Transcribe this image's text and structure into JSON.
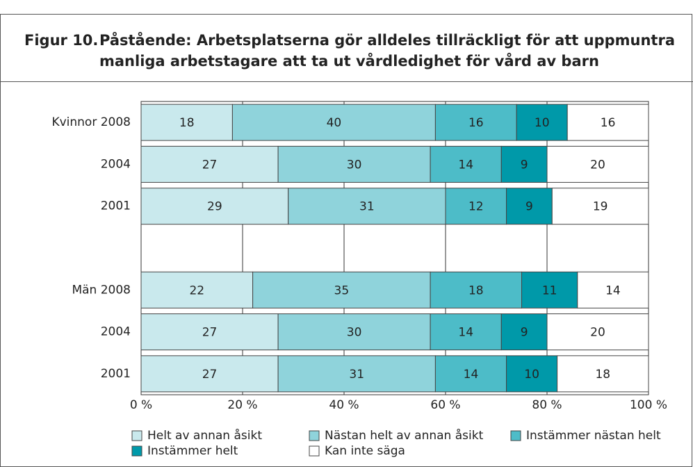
{
  "chart_data": {
    "type": "stacked-barh",
    "figure_label": "Figur 10.",
    "title": [
      "Påstående: Arbetsplatserna gör alldeles tillräckligt för att uppmuntra",
      "manliga arbetstagare att ta ut vårdledighet för vård av barn"
    ],
    "categories": [
      "Kvinnor 2008",
      "2004",
      "2001",
      null,
      "Män 2008",
      "2004",
      "2001"
    ],
    "series": [
      {
        "name": "Helt av annan åsikt",
        "color": "#c9e9ed",
        "values": [
          18,
          27,
          29,
          null,
          22,
          27,
          27
        ]
      },
      {
        "name": "Nästan helt av annan åsikt",
        "color": "#8fd3db",
        "values": [
          40,
          30,
          31,
          null,
          35,
          30,
          31
        ]
      },
      {
        "name": "Instämmer nästan helt",
        "color": "#4dbcc8",
        "values": [
          16,
          14,
          12,
          null,
          18,
          14,
          14
        ]
      },
      {
        "name": "Instämmer helt",
        "color": "#0099a9",
        "values": [
          10,
          9,
          9,
          null,
          11,
          9,
          10
        ]
      },
      {
        "name": "Kan inte säga",
        "color": "#ffffff",
        "values": [
          16,
          20,
          19,
          null,
          14,
          20,
          18
        ]
      }
    ],
    "xlim": [
      0,
      100
    ],
    "xticks": [
      {
        "value": 0,
        "label": "0 %"
      },
      {
        "value": 20,
        "label": "20 %"
      },
      {
        "value": 40,
        "label": "40 %"
      },
      {
        "value": 60,
        "label": "60 %"
      },
      {
        "value": 80,
        "label": "80 %"
      },
      {
        "value": 100,
        "label": "100 %"
      }
    ],
    "grid": true
  }
}
